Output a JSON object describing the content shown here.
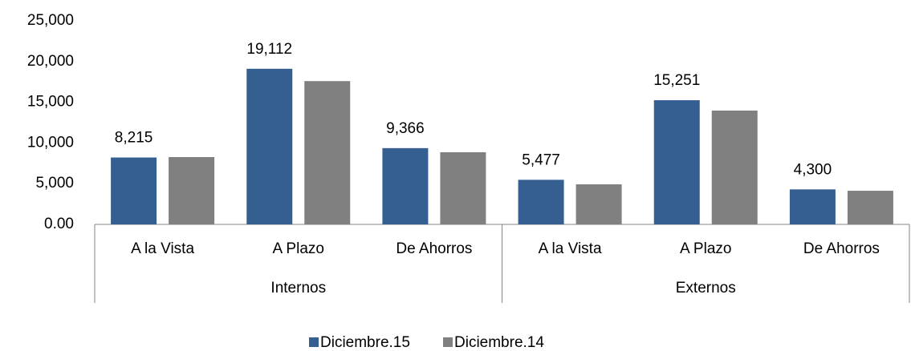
{
  "chart_data": {
    "type": "bar",
    "groups": [
      {
        "name": "Internos",
        "categories": [
          "A la Vista",
          "A Plazo",
          "De Ahorros"
        ]
      },
      {
        "name": "Externos",
        "categories": [
          "A la Vista",
          "A Plazo",
          "De Ahorros"
        ]
      }
    ],
    "series": [
      {
        "name": "Diciembre.15",
        "color": "#355f91",
        "values": [
          8215,
          19112,
          9366,
          5477,
          15251,
          4300
        ],
        "value_labels": [
          "8,215",
          "19,112",
          "9,366",
          "5,477",
          "15,251",
          "4,300"
        ]
      },
      {
        "name": "Diciembre.14",
        "color": "#808080",
        "values": [
          8270,
          17600,
          8860,
          4920,
          13980,
          4130
        ]
      }
    ],
    "ylim": [
      0,
      25000
    ],
    "yticks": [
      {
        "value": 0,
        "label": "0.00"
      },
      {
        "value": 5000,
        "label": "5,000"
      },
      {
        "value": 10000,
        "label": "10,000"
      },
      {
        "value": 15000,
        "label": "15,000"
      },
      {
        "value": 20000,
        "label": "20,000"
      },
      {
        "value": 25000,
        "label": "25,000"
      }
    ],
    "grid": false,
    "legend": "bottom"
  }
}
